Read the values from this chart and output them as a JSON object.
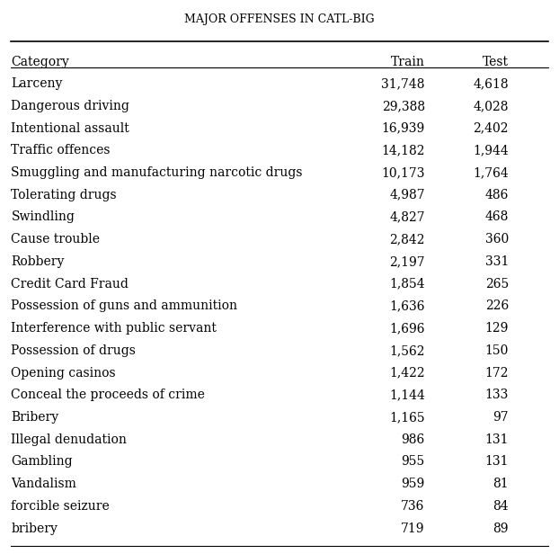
{
  "title": "Major Offenses in CATL-BIG",
  "columns": [
    "Category",
    "Train",
    "Test"
  ],
  "rows": [
    [
      "Larceny",
      "31,748",
      "4,618"
    ],
    [
      "Dangerous driving",
      "29,388",
      "4,028"
    ],
    [
      "Intentional assault",
      "16,939",
      "2,402"
    ],
    [
      "Traffic offences",
      "14,182",
      "1,944"
    ],
    [
      "Smuggling and manufacturing narcotic drugs",
      "10,173",
      "1,764"
    ],
    [
      "Tolerating drugs",
      "4,987",
      "486"
    ],
    [
      "Swindling",
      "4,827",
      "468"
    ],
    [
      "Cause trouble",
      "2,842",
      "360"
    ],
    [
      "Robbery",
      "2,197",
      "331"
    ],
    [
      "Credit Card Fraud",
      "1,854",
      "265"
    ],
    [
      "Possession of guns and ammunition",
      "1,636",
      "226"
    ],
    [
      "Interference with public servant",
      "1,696",
      "129"
    ],
    [
      "Possession of drugs",
      "1,562",
      "150"
    ],
    [
      "Opening casinos",
      "1,422",
      "172"
    ],
    [
      "Conceal the proceeds of crime",
      "1,144",
      "133"
    ],
    [
      "Bribery",
      "1,165",
      "97"
    ],
    [
      "Illegal denudation",
      "986",
      "131"
    ],
    [
      "Gambling",
      "955",
      "131"
    ],
    [
      "Vandalism",
      "959",
      "81"
    ],
    [
      "forcible seizure",
      "736",
      "84"
    ],
    [
      "bribery",
      "719",
      "89"
    ]
  ],
  "bg_color": "#ffffff",
  "text_color": "#000000",
  "title_fontsize": 9,
  "header_fontsize": 10,
  "body_fontsize": 10,
  "font_family": "serif"
}
